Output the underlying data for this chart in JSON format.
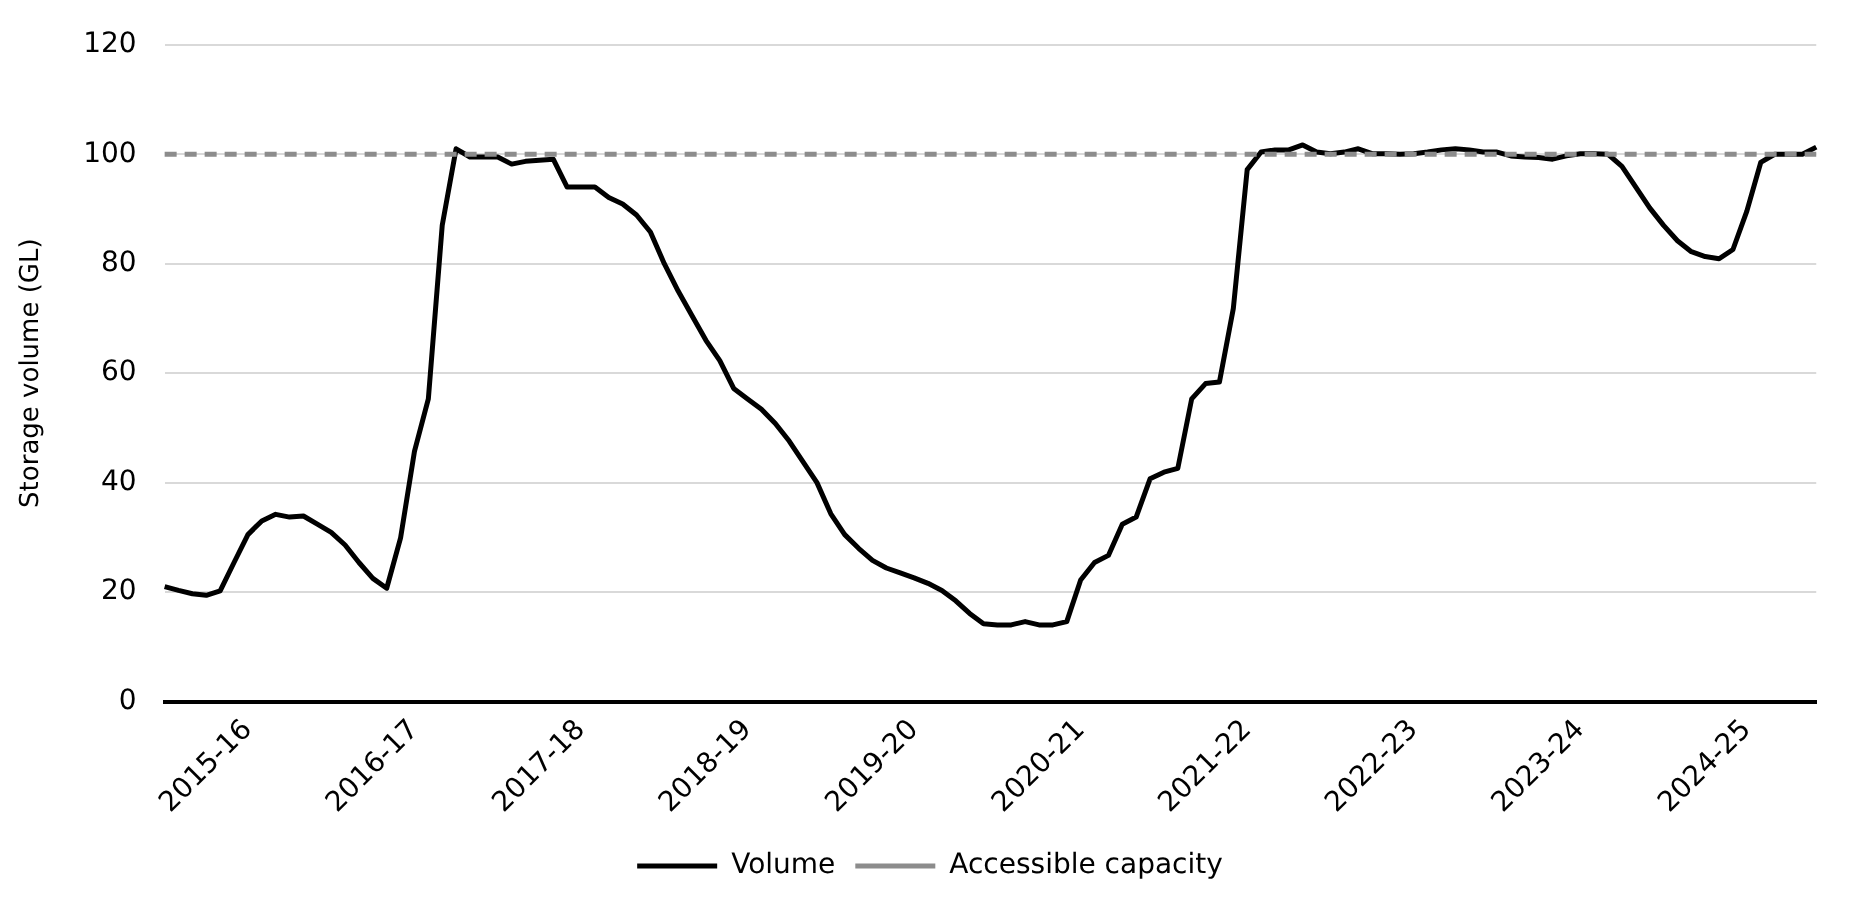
{
  "chart_data": {
    "type": "line",
    "ylabel": "Storage volume (GL)",
    "categories": [
      null,
      null,
      null,
      null,
      null,
      null,
      "2015-16",
      null,
      null,
      null,
      null,
      null,
      null,
      null,
      null,
      null,
      null,
      null,
      "2016-17",
      null,
      null,
      null,
      null,
      null,
      null,
      null,
      null,
      null,
      null,
      null,
      "2017-18",
      null,
      null,
      null,
      null,
      null,
      null,
      null,
      null,
      null,
      null,
      null,
      "2018-19",
      null,
      null,
      null,
      null,
      null,
      null,
      null,
      null,
      null,
      null,
      null,
      "2019-20",
      null,
      null,
      null,
      null,
      null,
      null,
      null,
      null,
      null,
      null,
      null,
      "2020-21",
      null,
      null,
      null,
      null,
      null,
      null,
      null,
      null,
      null,
      null,
      null,
      "2021-22",
      null,
      null,
      null,
      null,
      null,
      null,
      null,
      null,
      null,
      null,
      null,
      "2022-23",
      null,
      null,
      null,
      null,
      null,
      null,
      null,
      null,
      null,
      null,
      null,
      "2023-24",
      null,
      null,
      null,
      null,
      null,
      null,
      null,
      null,
      null,
      null,
      null,
      "2024-25",
      null,
      null,
      null,
      null,
      null
    ],
    "series": [
      {
        "name": "Volume",
        "color": "#000000",
        "values": [
          21,
          20.3,
          19.7,
          19.4,
          20.2,
          25.4,
          30.5,
          33,
          34.2,
          33.7,
          33.9,
          32.4,
          30.9,
          28.6,
          25.4,
          22.5,
          20.7,
          29.9,
          45.7,
          55.3,
          87,
          101,
          99.5,
          99.5,
          99.5,
          98.2,
          98.7,
          98.9,
          99.1,
          94,
          94,
          94,
          92.1,
          90.9,
          88.9,
          85.8,
          80,
          75,
          70.5,
          66,
          62.3,
          57.2,
          55.3,
          53.4,
          50.8,
          47.6,
          43.8,
          40,
          34.3,
          30.5,
          28,
          25.8,
          24.4,
          23.5,
          22.6,
          21.6,
          20.3,
          18.4,
          16.1,
          14.2,
          14,
          14,
          14.6,
          14,
          14,
          14.6,
          22.2,
          25.4,
          26.7,
          32.4,
          33.7,
          40.7,
          41.9,
          42.6,
          55.3,
          58.1,
          58.4,
          71.8,
          97.2,
          100.4,
          100.8,
          100.8,
          101.7,
          100.4,
          100.1,
          100.4,
          101,
          100.1,
          100.1,
          100,
          100.1,
          100.4,
          100.8,
          101,
          100.8,
          100.4,
          100.4,
          99.7,
          99.5,
          99.4,
          99.1,
          99.7,
          100.1,
          100.1,
          100,
          97.8,
          94,
          90.2,
          87,
          84.2,
          82.2,
          81.3,
          80.9,
          82.6,
          89.6,
          98.5,
          100,
          100,
          100,
          101.3
        ]
      },
      {
        "name": "Accessible capacity",
        "color": "#8c8c8c",
        "line_style": "dashed",
        "values": [
          100,
          100,
          100,
          100,
          100,
          100,
          100,
          100,
          100,
          100,
          100,
          100,
          100,
          100,
          100,
          100,
          100,
          100,
          100,
          100,
          100,
          100,
          100,
          100,
          100,
          100,
          100,
          100,
          100,
          100,
          100,
          100,
          100,
          100,
          100,
          100,
          100,
          100,
          100,
          100,
          100,
          100,
          100,
          100,
          100,
          100,
          100,
          100,
          100,
          100,
          100,
          100,
          100,
          100,
          100,
          100,
          100,
          100,
          100,
          100,
          100,
          100,
          100,
          100,
          100,
          100,
          100,
          100,
          100,
          100,
          100,
          100,
          100,
          100,
          100,
          100,
          100,
          100,
          100,
          100,
          100,
          100,
          100,
          100,
          100,
          100,
          100,
          100,
          100,
          100,
          100,
          100,
          100,
          100,
          100,
          100,
          100,
          100,
          100,
          100,
          100,
          100,
          100,
          100,
          100,
          100,
          100,
          100,
          100,
          100,
          100,
          100,
          100,
          100,
          100,
          100,
          100,
          100,
          100,
          100
        ]
      }
    ],
    "ylim": [
      0,
      120
    ],
    "yticks": [
      0,
      20,
      40,
      60,
      80,
      100,
      120
    ],
    "grid": "y",
    "legend": "bottom",
    "line_style": "solid",
    "marker": "none"
  }
}
